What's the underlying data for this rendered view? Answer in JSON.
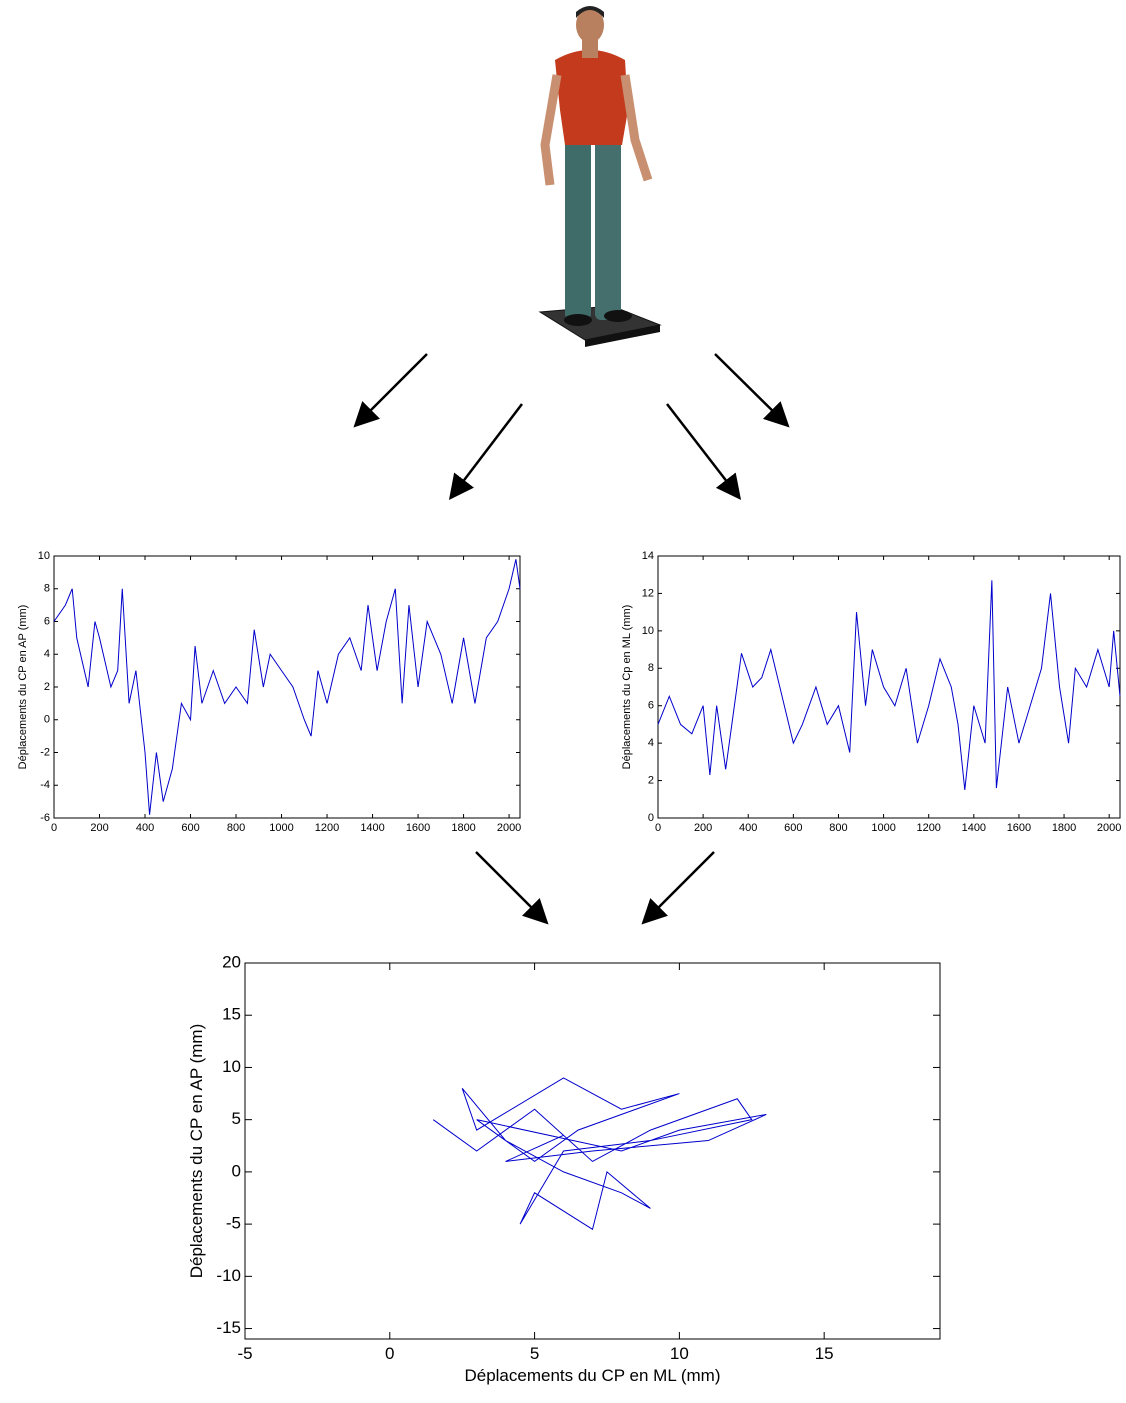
{
  "chart_data": [
    {
      "type": "line",
      "ylabel": "Déplacements du CP en AP (mm)",
      "xlim": [
        0,
        2048
      ],
      "xticks": [
        0,
        200,
        400,
        600,
        800,
        1000,
        1200,
        1400,
        1600,
        1800,
        2000
      ],
      "ylim": [
        -6,
        10
      ],
      "yticks": [
        -6,
        -4,
        -2,
        0,
        2,
        4,
        6,
        8,
        10
      ],
      "series": [
        {
          "color": "#0000cc",
          "x": [
            0,
            50,
            80,
            100,
            150,
            180,
            200,
            250,
            280,
            300,
            330,
            360,
            400,
            420,
            450,
            480,
            520,
            560,
            600,
            620,
            650,
            700,
            750,
            800,
            850,
            880,
            920,
            950,
            1000,
            1050,
            1100,
            1130,
            1160,
            1200,
            1250,
            1300,
            1350,
            1380,
            1420,
            1460,
            1500,
            1530,
            1560,
            1600,
            1640,
            1700,
            1750,
            1800,
            1850,
            1900,
            1950,
            2000,
            2030,
            2048
          ],
          "values": [
            6,
            7,
            8,
            5,
            2,
            6,
            5,
            2,
            3,
            8,
            1,
            3,
            -2,
            -5.8,
            -2,
            -5,
            -3,
            1,
            0,
            4.5,
            1,
            3,
            1,
            2,
            1,
            5.5,
            2,
            4,
            3,
            2,
            0,
            -1,
            3,
            1,
            4,
            5,
            3,
            7,
            3,
            6,
            8,
            1,
            7,
            2,
            6,
            4,
            1,
            5,
            1,
            5,
            6,
            8,
            9.8,
            8
          ]
        }
      ]
    },
    {
      "type": "line",
      "ylabel": "Déplacements du Cp en ML (mm)",
      "xlim": [
        0,
        2048
      ],
      "xticks": [
        0,
        200,
        400,
        600,
        800,
        1000,
        1200,
        1400,
        1600,
        1800,
        2000
      ],
      "ylim": [
        0,
        14
      ],
      "yticks": [
        0,
        2,
        4,
        6,
        8,
        10,
        12,
        14
      ],
      "series": [
        {
          "color": "#0000cc",
          "x": [
            0,
            50,
            100,
            150,
            200,
            230,
            260,
            300,
            350,
            370,
            420,
            460,
            500,
            540,
            600,
            640,
            700,
            750,
            800,
            850,
            880,
            920,
            950,
            1000,
            1050,
            1100,
            1150,
            1200,
            1250,
            1300,
            1330,
            1360,
            1400,
            1450,
            1480,
            1500,
            1550,
            1600,
            1650,
            1700,
            1740,
            1780,
            1820,
            1850,
            1900,
            1950,
            2000,
            2020,
            2048
          ],
          "values": [
            5,
            6.5,
            5,
            4.5,
            6,
            2.3,
            6,
            2.6,
            7,
            8.8,
            7,
            7.5,
            9,
            7,
            4,
            5,
            7,
            5,
            6,
            3.5,
            11,
            6,
            9,
            7,
            6,
            8,
            4,
            6,
            8.5,
            7,
            5,
            1.5,
            6,
            4,
            12.7,
            1.6,
            7,
            4,
            6,
            8,
            12,
            7,
            4,
            8,
            7,
            9,
            7,
            10,
            6.5
          ]
        }
      ]
    },
    {
      "type": "line",
      "xlabel": "Déplacements du CP en ML (mm)",
      "ylabel": "Déplacements du CP en AP (mm)",
      "xlim": [
        -5,
        19
      ],
      "xticks": [
        -5,
        0,
        5,
        10,
        15
      ],
      "ylim": [
        -16,
        20
      ],
      "yticks": [
        -15,
        -10,
        -5,
        0,
        5,
        10,
        15,
        20
      ],
      "series": [
        {
          "color": "#0000cc",
          "x": [
            1.5,
            3,
            5,
            7,
            9,
            12,
            12.5,
            9,
            6,
            4.5,
            5,
            7,
            7.5,
            9,
            8,
            6,
            4,
            2.5,
            3,
            6,
            8,
            10,
            6.5,
            5,
            3,
            8,
            10,
            13,
            11,
            7,
            4,
            6
          ],
          "values": [
            5,
            2,
            6,
            1,
            4,
            7,
            5,
            3,
            2,
            -5,
            -2,
            -5.5,
            0,
            -3.5,
            -2,
            0,
            3,
            8,
            4,
            9,
            6,
            7.5,
            4,
            1,
            5,
            2,
            4,
            5.5,
            3,
            2,
            1,
            3.5
          ]
        }
      ]
    }
  ]
}
